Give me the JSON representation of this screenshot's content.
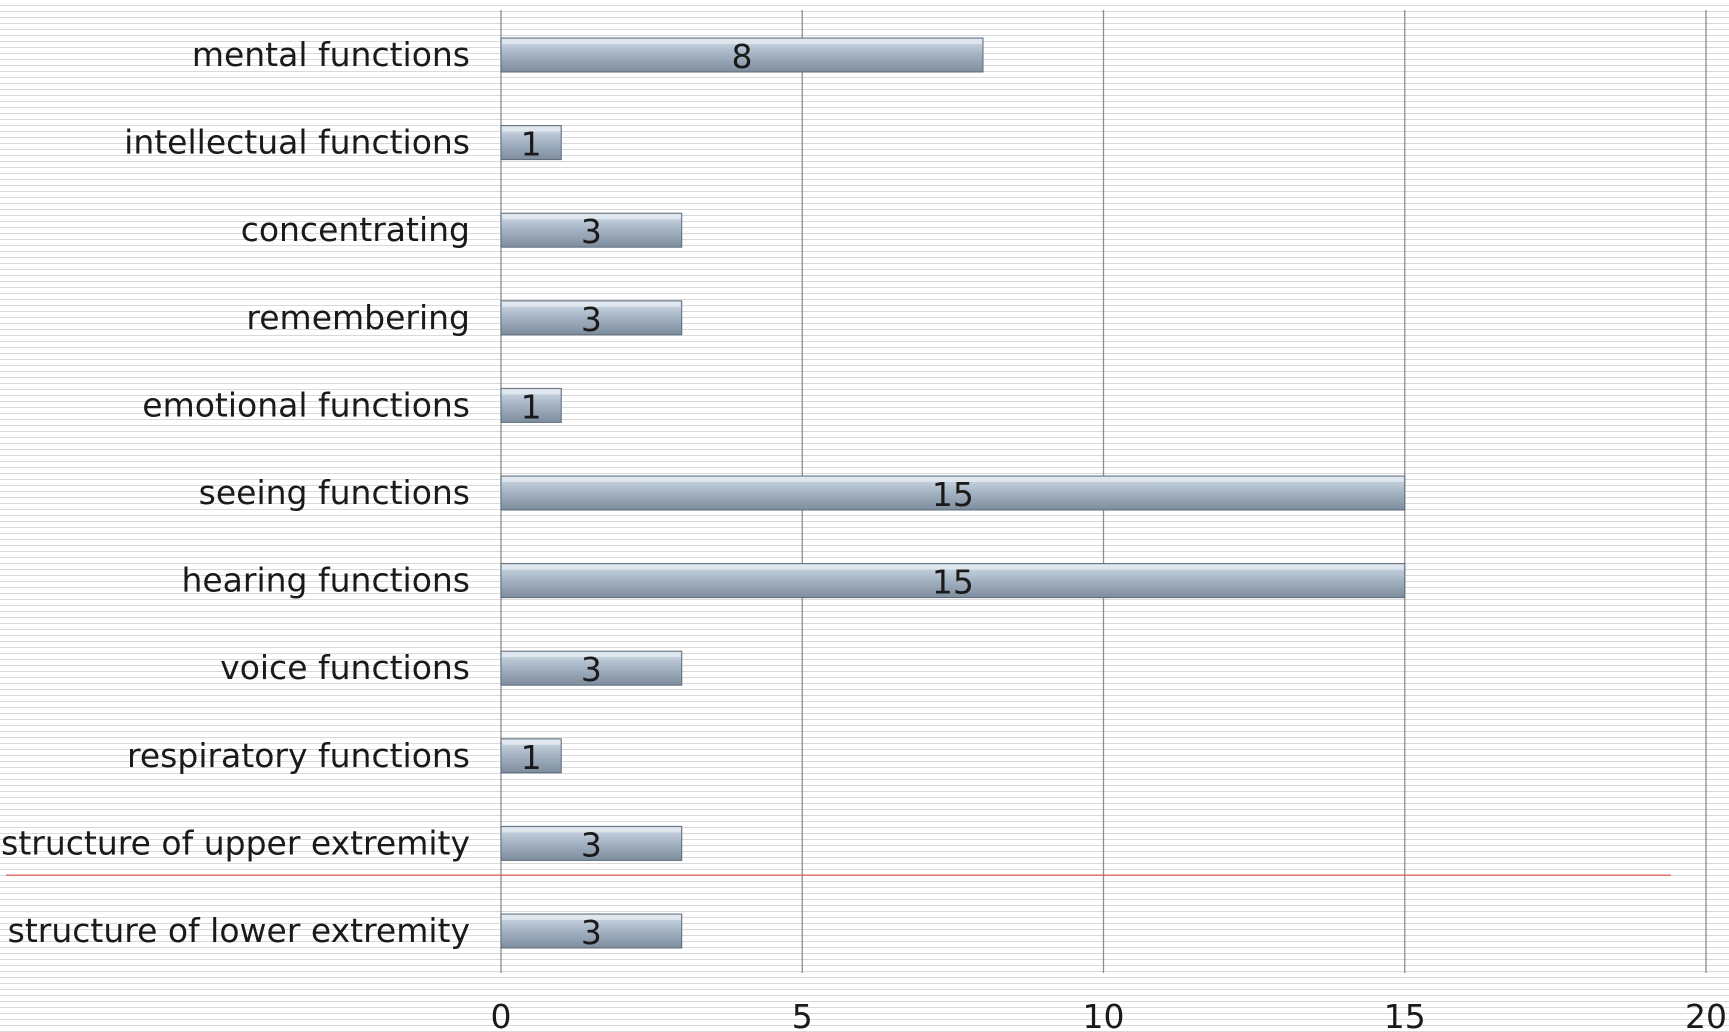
{
  "chart_data": {
    "type": "bar",
    "orientation": "horizontal",
    "title": "",
    "xlabel": "",
    "ylabel": "",
    "categories": [
      "mental functions",
      "intellectual functions",
      "concentrating",
      "remembering",
      "emotional functions",
      "seeing functions",
      "hearing functions",
      "voice functions",
      "respiratory functions",
      "structure of upper extremity",
      "structure of lower extremity"
    ],
    "values": [
      8,
      1,
      3,
      3,
      1,
      15,
      15,
      3,
      1,
      3,
      3
    ],
    "data_labels": [
      "8",
      "1",
      "3",
      "3",
      "1",
      "15",
      "15",
      "3",
      "1",
      "3",
      "3"
    ],
    "xlim": [
      0,
      20
    ],
    "x_ticks": [
      0,
      5,
      10,
      15,
      20
    ],
    "x_tick_labels": [
      "0",
      "5",
      "10",
      "15",
      "20"
    ],
    "grid": "vertical",
    "legend": "none",
    "divider_after_category": "structure of upper extremity",
    "colors": {
      "bar_top": "#d3dde8",
      "bar_mid": "#a7b6c6",
      "bar_bottom": "#7e8d9d",
      "bar_edge": "#5c6b7a",
      "gridline": "#8c8c8c",
      "axis": "#8c8c8c",
      "divider": "#e06666",
      "text": "#1a1a1a"
    }
  }
}
